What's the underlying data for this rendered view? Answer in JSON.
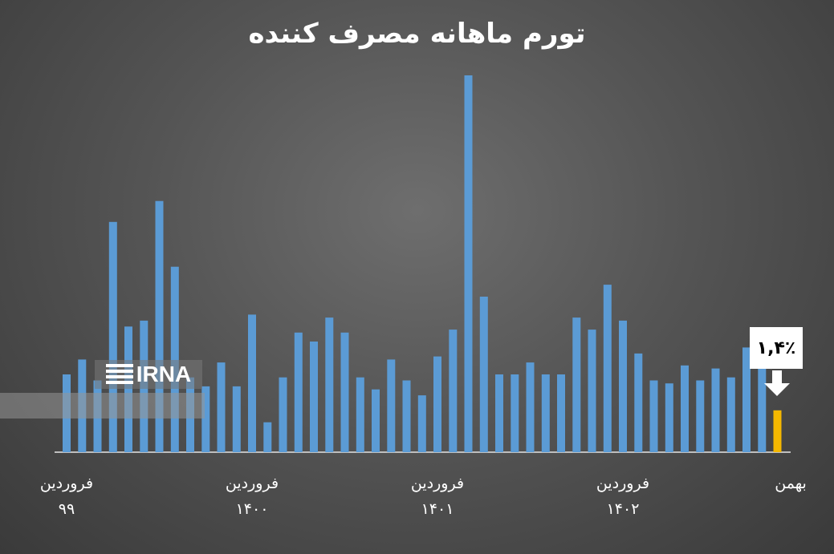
{
  "chart_data": {
    "type": "bar",
    "title": "تورم ماهانه مصرف کننده",
    "series": [
      {
        "values": [
          2.6,
          3.1,
          2.4,
          7.7,
          4.2,
          4.4,
          8.4,
          6.2,
          2.5,
          2.2,
          3.0,
          2.2,
          4.6,
          1.0,
          2.5,
          4.0,
          3.7,
          4.5,
          4.0,
          2.5,
          2.1,
          3.1,
          2.4,
          1.9,
          3.2,
          4.1,
          12.6,
          5.2,
          2.6,
          2.6,
          3.0,
          2.6,
          2.6,
          4.5,
          4.1,
          5.6,
          4.4,
          3.3,
          2.4,
          2.3,
          2.9,
          2.4,
          2.8,
          2.5,
          3.5,
          3.3,
          1.4
        ],
        "highlight_index": 46
      }
    ],
    "x_labels": [
      {
        "month": "فروردین",
        "year": "۹۹",
        "index": 0
      },
      {
        "month": "فروردین",
        "year": "۱۴۰۰",
        "index": 12
      },
      {
        "month": "فروردین",
        "year": "۱۴۰۱",
        "index": 24
      },
      {
        "month": "فروردین",
        "year": "۱۴۰۲",
        "index": 36
      },
      {
        "month": "بهمن",
        "year": "",
        "index": 46
      }
    ],
    "callout": "۱,۴٪",
    "ylim": [
      0,
      12.6
    ],
    "colors": {
      "bar": "#5b9bd5",
      "highlight": "#f5b800",
      "baseline": "#bfbfbf"
    }
  },
  "watermark": {
    "text": "IRNA"
  }
}
